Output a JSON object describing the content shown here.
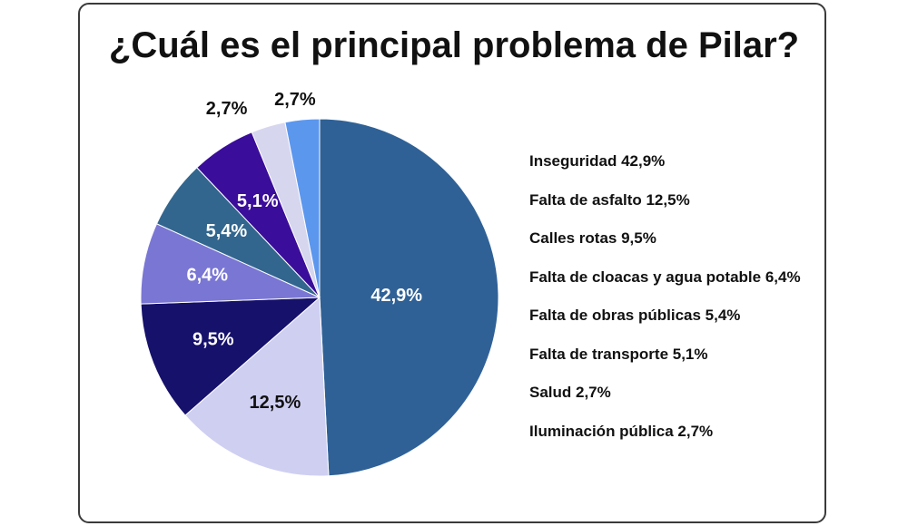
{
  "colors": {
    "inseguridad": "#2f6196",
    "asfalto": "#cfcff2",
    "calles": "#16116b",
    "cloacas": "#7a76d4",
    "obras": "#32668e",
    "transporte": "#3a0d9a",
    "salud": "#d6d6ef",
    "iluminacion": "#5c97ee"
  },
  "chart_data": {
    "type": "pie",
    "title": "¿Cuál es el principal problema de Pilar?",
    "start_angle_deg": 0,
    "direction": "clockwise",
    "legend_position": "right",
    "slices": [
      {
        "label": "Inseguridad",
        "value": 42.9,
        "value_label": "42,9%",
        "legend": "Inseguridad 42,9%",
        "color_key": "inseguridad",
        "text_color": "#ffffff"
      },
      {
        "label": "Falta de asfalto",
        "value": 12.5,
        "value_label": "12,5%",
        "legend": "Falta de asfalto 12,5%",
        "color_key": "asfalto",
        "text_color": "#111111"
      },
      {
        "label": "Calles rotas",
        "value": 9.5,
        "value_label": "9,5%",
        "legend": "Calles rotas 9,5%",
        "color_key": "calles",
        "text_color": "#ffffff"
      },
      {
        "label": "Falta de cloacas y agua potable",
        "value": 6.4,
        "value_label": "6,4%",
        "legend": "Falta de cloacas y agua potable 6,4%",
        "color_key": "cloacas",
        "text_color": "#ffffff"
      },
      {
        "label": "Falta de obras públicas",
        "value": 5.4,
        "value_label": "5,4%",
        "legend": "Falta de obras públicas 5,4%",
        "color_key": "obras",
        "text_color": "#ffffff"
      },
      {
        "label": "Falta de transporte",
        "value": 5.1,
        "value_label": "5,1%",
        "legend": "Falta de transporte 5,1%",
        "color_key": "transporte",
        "text_color": "#ffffff"
      },
      {
        "label": "Salud",
        "value": 2.7,
        "value_label": "2,7%",
        "legend": "Salud 2,7%",
        "color_key": "salud",
        "text_color": "#111111",
        "label_outside": true
      },
      {
        "label": "Iluminación pública",
        "value": 2.7,
        "value_label": "2,7%",
        "legend": "Iluminación pública 2,7%",
        "color_key": "iluminacion",
        "text_color": "#111111",
        "label_outside": true
      }
    ]
  }
}
